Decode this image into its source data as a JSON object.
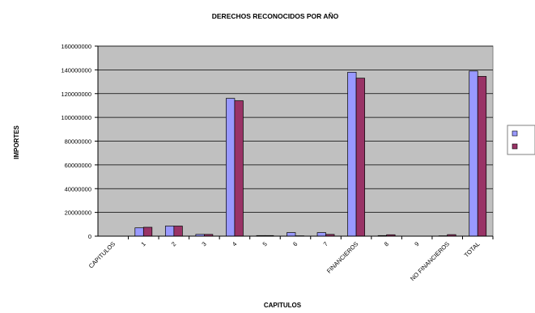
{
  "chart_data": {
    "type": "bar",
    "title": "DERECHOS RECONOCIDOS POR AÑO",
    "xlabel": "CAPITULOS",
    "ylabel": "IMPORTES",
    "categories": [
      "CAPITULOS",
      "1",
      "2",
      "3",
      "4",
      "5",
      "6",
      "7",
      "FINANCIEROS",
      "8",
      "9",
      "NO FINANCIEROS",
      "TOTAL"
    ],
    "series": [
      {
        "color": "#9999ff",
        "values": [
          0,
          7000000,
          8500000,
          1500000,
          116000000,
          500000,
          3000000,
          3000000,
          138000000,
          500000,
          0,
          300000,
          139000000
        ]
      },
      {
        "color": "#993366",
        "values": [
          0,
          7500000,
          8500000,
          1500000,
          114000000,
          500000,
          300000,
          1500000,
          133000000,
          1200000,
          0,
          1300000,
          134500000
        ]
      }
    ],
    "ylim": [
      0,
      160000000
    ],
    "yticks": [
      0,
      20000000,
      40000000,
      60000000,
      80000000,
      100000000,
      120000000,
      140000000,
      160000000
    ],
    "grid": true,
    "legend_position": "right",
    "plot_background": "#c0c0c0"
  }
}
